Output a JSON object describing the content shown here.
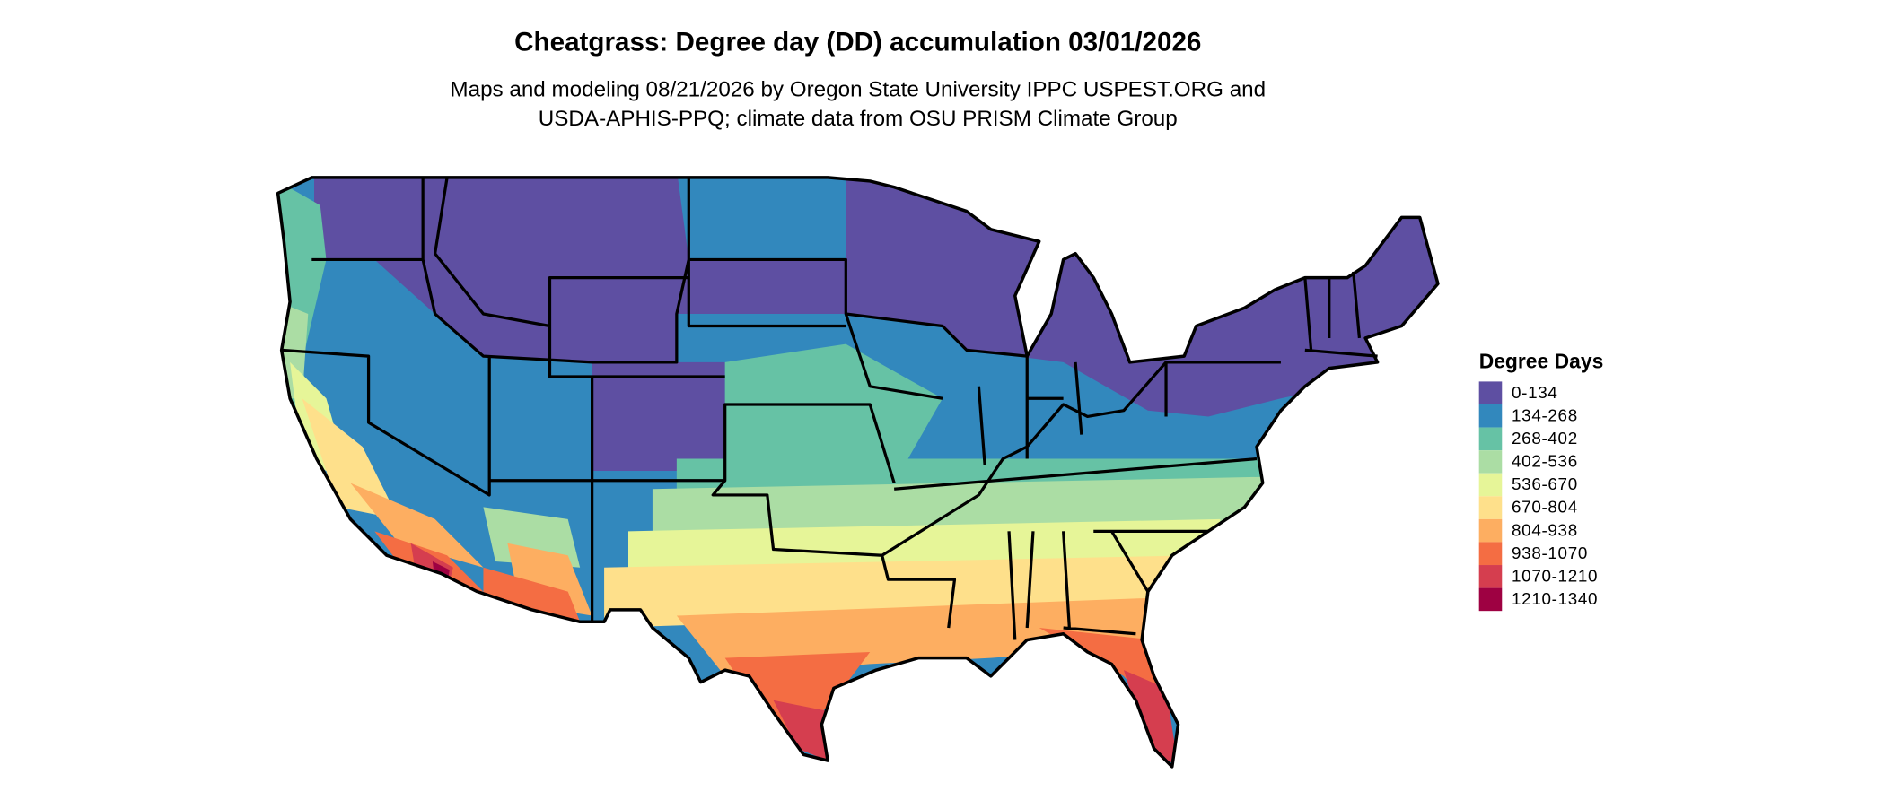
{
  "header": {
    "title": "Cheatgrass: Degree day (DD) accumulation 03/01/2026",
    "subtitle_lines": [
      "Maps and modeling 08/21/2026 by Oregon State University IPPC USPEST.ORG and",
      "USDA-APHIS-PPQ; climate data from OSU PRISM Climate Group"
    ]
  },
  "legend": {
    "title": "Degree Days",
    "items": [
      {
        "label": "0-134",
        "color": "#5e4fa2"
      },
      {
        "label": "134-268",
        "color": "#3288bd"
      },
      {
        "label": "268-402",
        "color": "#66c2a5"
      },
      {
        "label": "402-536",
        "color": "#abdda4"
      },
      {
        "label": "536-670",
        "color": "#e6f598"
      },
      {
        "label": "670-804",
        "color": "#fee08b"
      },
      {
        "label": "804-938",
        "color": "#fdae61"
      },
      {
        "label": "938-1070",
        "color": "#f46d43"
      },
      {
        "label": "1070-1210",
        "color": "#d53e4f"
      },
      {
        "label": "1210-1340",
        "color": "#9e0142"
      }
    ]
  }
}
